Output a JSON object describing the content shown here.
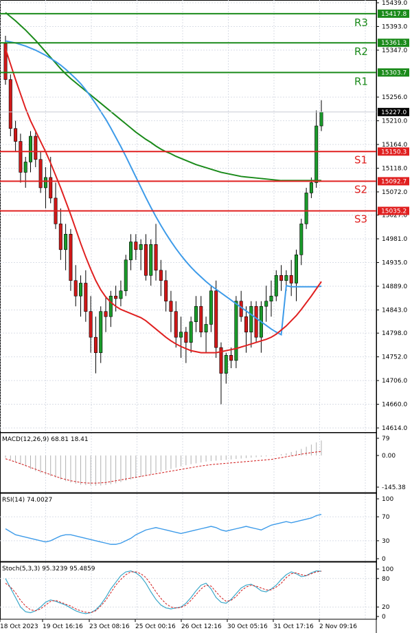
{
  "chart_data": {
    "type": "candlestick",
    "price_axis": {
      "ticks": [
        "15439.0",
        "15393.0",
        "15347.0",
        "15256.0",
        "15210.0",
        "15164.0",
        "15118.0",
        "15072.0",
        "15027.0",
        "14981.0",
        "14935.0",
        "14889.0",
        "14843.0",
        "14798.0",
        "14752.0",
        "14706.0",
        "14660.0",
        "14614.0"
      ],
      "ylim": [
        14614.0,
        15439.0
      ]
    },
    "time_axis": {
      "labels": [
        "18 Oct 2023",
        "19 Oct 16:16",
        "23 Oct 08:16",
        "25 Oct 00:16",
        "26 Oct 12:16",
        "30 Oct 05:16",
        "31 Oct 17:16",
        "2 Nov 09:16"
      ]
    },
    "levels": [
      {
        "name": "R3",
        "value": 15417.8,
        "color": "#1a8a1a",
        "label": "15417.8"
      },
      {
        "name": "R2",
        "value": 15361.3,
        "color": "#1a8a1a",
        "label": "15361.3"
      },
      {
        "name": "R1",
        "value": 15303.7,
        "color": "#1a8a1a",
        "label": "15303.7"
      },
      {
        "name": "S1",
        "value": 15150.3,
        "color": "#e02020",
        "label": "15150.3"
      },
      {
        "name": "S2",
        "value": 15092.7,
        "color": "#e02020",
        "label": "15092.7"
      },
      {
        "name": "S3",
        "value": 15035.2,
        "color": "#e02020",
        "label": "15035.2"
      }
    ],
    "current_price": {
      "value": 15227.0,
      "label": "15227.0"
    },
    "candles": [
      [
        15360,
        15375,
        15280,
        15290
      ],
      [
        15290,
        15300,
        15180,
        15195
      ],
      [
        15195,
        15210,
        15150,
        15170
      ],
      [
        15170,
        15185,
        15090,
        15110
      ],
      [
        15110,
        15140,
        15080,
        15130
      ],
      [
        15130,
        15190,
        15110,
        15180
      ],
      [
        15180,
        15190,
        15120,
        15135
      ],
      [
        15135,
        15150,
        15070,
        15080
      ],
      [
        15080,
        15120,
        15040,
        15100
      ],
      [
        15100,
        15140,
        15050,
        15060
      ],
      [
        15060,
        15090,
        15000,
        15010
      ],
      [
        15010,
        15040,
        14940,
        14960
      ],
      [
        14960,
        15010,
        14920,
        14990
      ],
      [
        14990,
        15000,
        14880,
        14900
      ],
      [
        14900,
        14930,
        14850,
        14870
      ],
      [
        14870,
        14910,
        14830,
        14895
      ],
      [
        14895,
        14920,
        14820,
        14840
      ],
      [
        14840,
        14870,
        14760,
        14790
      ],
      [
        14790,
        14830,
        14720,
        14760
      ],
      [
        14760,
        14850,
        14740,
        14840
      ],
      [
        14840,
        14870,
        14800,
        14830
      ],
      [
        14830,
        14880,
        14810,
        14870
      ],
      [
        14870,
        14890,
        14840,
        14865
      ],
      [
        14865,
        14900,
        14850,
        14880
      ],
      [
        14880,
        14950,
        14870,
        14940
      ],
      [
        14940,
        14990,
        14920,
        14975
      ],
      [
        14975,
        14990,
        14940,
        14960
      ],
      [
        14960,
        14980,
        14920,
        14970
      ],
      [
        14970,
        14990,
        14900,
        14910
      ],
      [
        14910,
        14980,
        14890,
        14970
      ],
      [
        14970,
        15010,
        14900,
        14920
      ],
      [
        14920,
        14940,
        14870,
        14900
      ],
      [
        14900,
        14920,
        14840,
        14860
      ],
      [
        14860,
        14880,
        14800,
        14840
      ],
      [
        14840,
        14860,
        14770,
        14790
      ],
      [
        14790,
        14830,
        14750,
        14800
      ],
      [
        14800,
        14810,
        14740,
        14780
      ],
      [
        14780,
        14830,
        14760,
        14820
      ],
      [
        14820,
        14870,
        14800,
        14850
      ],
      [
        14850,
        14870,
        14790,
        14800
      ],
      [
        14800,
        14830,
        14760,
        14815
      ],
      [
        14815,
        14890,
        14800,
        14880
      ],
      [
        14880,
        14900,
        14750,
        14770
      ],
      [
        14770,
        14780,
        14660,
        14720
      ],
      [
        14720,
        14760,
        14700,
        14755
      ],
      [
        14755,
        14770,
        14730,
        14745
      ],
      [
        14745,
        14870,
        14730,
        14860
      ],
      [
        14860,
        14880,
        14820,
        14830
      ],
      [
        14830,
        14850,
        14760,
        14800
      ],
      [
        14800,
        14860,
        14770,
        14850
      ],
      [
        14850,
        14860,
        14780,
        14790
      ],
      [
        14790,
        14860,
        14760,
        14850
      ],
      [
        14850,
        14890,
        14820,
        14860
      ],
      [
        14860,
        14900,
        14830,
        14870
      ],
      [
        14870,
        14920,
        14860,
        14910
      ],
      [
        14910,
        14930,
        14880,
        14900
      ],
      [
        14900,
        14920,
        14880,
        14910
      ],
      [
        14910,
        14940,
        14870,
        14895
      ],
      [
        14895,
        14960,
        14860,
        14950
      ],
      [
        14950,
        15020,
        14930,
        15010
      ],
      [
        15010,
        15080,
        15000,
        15070
      ],
      [
        15070,
        15100,
        15060,
        15090
      ],
      [
        15090,
        15230,
        15080,
        15200
      ],
      [
        15200,
        15250,
        15190,
        15227
      ]
    ],
    "moving_averages": [
      {
        "color": "#1a8a1a",
        "values": [
          15420,
          15412,
          15404,
          15395,
          15386,
          15376,
          15366,
          15355,
          15344,
          15333,
          15322,
          15311,
          15301,
          15292,
          15284,
          15276,
          15268,
          15260,
          15252,
          15244,
          15236,
          15228,
          15220,
          15212,
          15204,
          15196,
          15188,
          15181,
          15174,
          15168,
          15161,
          15155,
          15150,
          15146,
          15141,
          15137,
          15133,
          15129,
          15125,
          15122,
          15119,
          15116,
          15113,
          15110,
          15108,
          15106,
          15104,
          15102,
          15101,
          15100,
          15099,
          15098,
          15097,
          15096,
          15095,
          15094,
          15094,
          15094,
          15094,
          15094,
          15094,
          15094,
          15094,
          15094
        ]
      },
      {
        "color": "#3d9be9",
        "values": [
          15365,
          15363,
          15361,
          15358,
          15355,
          15351,
          15347,
          15342,
          15337,
          15331,
          15325,
          15318,
          15310,
          15301,
          15292,
          15282,
          15270,
          15257,
          15243,
          15228,
          15213,
          15196,
          15178,
          15160,
          15141,
          15121,
          15101,
          15081,
          15061,
          15042,
          15024,
          15007,
          14991,
          14976,
          14962,
          14949,
          14937,
          14926,
          14916,
          14907,
          14898,
          14890,
          14883,
          14876,
          14869,
          14862,
          14855,
          14848,
          14841,
          14834,
          14827,
          14820,
          14813,
          14806,
          14800,
          14795,
          14890,
          14888,
          14888,
          14888,
          14888,
          14888,
          14888,
          14889
        ]
      },
      {
        "color": "#e02020",
        "values": [
          15350,
          15320,
          15290,
          15262,
          15234,
          15210,
          15190,
          15170,
          15150,
          15128,
          15104,
          15080,
          15054,
          15028,
          15000,
          14972,
          14946,
          14922,
          14900,
          14882,
          14868,
          14858,
          14850,
          14844,
          14840,
          14836,
          14832,
          14828,
          14822,
          14814,
          14806,
          14798,
          14790,
          14783,
          14777,
          14772,
          14768,
          14764,
          14762,
          14760,
          14760,
          14760,
          14760,
          14762,
          14764,
          14766,
          14768,
          14771,
          14774,
          14777,
          14780,
          14783,
          14786,
          14790,
          14796,
          14804,
          14812,
          14822,
          14832,
          14844,
          14857,
          14870,
          14884,
          14898
        ]
      }
    ],
    "macd": {
      "label": "MACD(12,26,9) 68.81 18.41",
      "ticks": [
        "79",
        "0.00",
        "-145.38"
      ],
      "ylim": [
        -145.38,
        79
      ],
      "histogram": [
        -10,
        -20,
        -30,
        -40,
        -50,
        -62,
        -72,
        -80,
        -88,
        -95,
        -102,
        -110,
        -118,
        -124,
        -130,
        -134,
        -136,
        -138,
        -139,
        -138,
        -136,
        -132,
        -128,
        -122,
        -116,
        -110,
        -104,
        -98,
        -92,
        -86,
        -80,
        -74,
        -68,
        -62,
        -56,
        -50,
        -45,
        -40,
        -36,
        -32,
        -28,
        -26,
        -24,
        -22,
        -20,
        -18,
        -16,
        -14,
        -12,
        -10,
        -8,
        -6,
        -4,
        -2,
        2,
        6,
        10,
        16,
        22,
        30,
        40,
        50,
        60,
        68.81
      ],
      "signal": [
        -15,
        -22,
        -30,
        -38,
        -46,
        -55,
        -63,
        -72,
        -80,
        -88,
        -96,
        -104,
        -110,
        -116,
        -120,
        -124,
        -126,
        -127,
        -127,
        -126,
        -124,
        -120,
        -116,
        -112,
        -108,
        -104,
        -100,
        -96,
        -92,
        -88,
        -84,
        -80,
        -76,
        -72,
        -68,
        -64,
        -60,
        -56,
        -52,
        -48,
        -45,
        -42,
        -40,
        -38,
        -36,
        -34,
        -32,
        -30,
        -28,
        -26,
        -24,
        -22,
        -20,
        -18,
        -14,
        -10,
        -6,
        -2,
        2,
        6,
        10,
        13,
        16,
        18.41
      ]
    },
    "rsi": {
      "label": "RSI(14) 74.0027",
      "ticks": [
        "100",
        "70",
        "30",
        "0"
      ],
      "ylim": [
        0,
        100
      ],
      "values": [
        50,
        45,
        40,
        38,
        36,
        34,
        32,
        30,
        28,
        30,
        34,
        38,
        40,
        40,
        38,
        36,
        34,
        32,
        30,
        28,
        26,
        24,
        24,
        26,
        30,
        34,
        40,
        44,
        48,
        50,
        52,
        50,
        48,
        46,
        44,
        42,
        44,
        46,
        48,
        50,
        52,
        54,
        52,
        48,
        46,
        48,
        50,
        52,
        54,
        52,
        50,
        48,
        52,
        56,
        58,
        60,
        62,
        60,
        62,
        64,
        66,
        68,
        72,
        74.0027
      ]
    },
    "stoch": {
      "label": "Stoch(5,3,3) 95.3239 95.4859",
      "ticks": [
        "100",
        "80",
        "20",
        "0"
      ],
      "ylim": [
        0,
        100
      ],
      "k": [
        80,
        60,
        40,
        20,
        10,
        8,
        12,
        20,
        30,
        35,
        32,
        28,
        24,
        18,
        12,
        8,
        6,
        8,
        14,
        25,
        40,
        58,
        72,
        86,
        94,
        96,
        92,
        84,
        70,
        52,
        36,
        24,
        18,
        16,
        18,
        20,
        28,
        40,
        54,
        66,
        70,
        58,
        40,
        30,
        28,
        36,
        48,
        60,
        66,
        68,
        62,
        54,
        52,
        58,
        66,
        78,
        88,
        94,
        90,
        84,
        86,
        92,
        96,
        95.3239
      ],
      "d": [
        70,
        62,
        50,
        34,
        22,
        14,
        12,
        16,
        24,
        32,
        34,
        30,
        26,
        22,
        16,
        12,
        9,
        8,
        12,
        22,
        34,
        50,
        66,
        78,
        88,
        94,
        94,
        90,
        82,
        68,
        52,
        38,
        27,
        20,
        18,
        19,
        24,
        34,
        46,
        58,
        66,
        64,
        52,
        40,
        32,
        34,
        42,
        54,
        62,
        66,
        64,
        60,
        56,
        56,
        62,
        70,
        82,
        90,
        92,
        88,
        86,
        90,
        94,
        95.4859
      ]
    }
  }
}
